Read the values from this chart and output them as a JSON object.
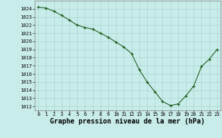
{
  "x": [
    0,
    1,
    2,
    3,
    4,
    5,
    6,
    7,
    8,
    9,
    10,
    11,
    12,
    13,
    14,
    15,
    16,
    17,
    18,
    19,
    20,
    21,
    22,
    23
  ],
  "y": [
    1024.2,
    1024.1,
    1023.7,
    1023.2,
    1022.6,
    1022.0,
    1021.7,
    1021.5,
    1021.0,
    1020.5,
    1019.9,
    1019.3,
    1018.5,
    1016.5,
    1015.0,
    1013.8,
    1012.6,
    1012.1,
    1012.3,
    1013.3,
    1014.5,
    1016.9,
    1017.8,
    1019.0
  ],
  "xlim": [
    -0.5,
    23.5
  ],
  "ylim": [
    1011.5,
    1025.0
  ],
  "yticks": [
    1012,
    1013,
    1014,
    1015,
    1016,
    1017,
    1018,
    1019,
    1020,
    1021,
    1022,
    1023,
    1024
  ],
  "xticks": [
    0,
    1,
    2,
    3,
    4,
    5,
    6,
    7,
    8,
    9,
    10,
    11,
    12,
    13,
    14,
    15,
    16,
    17,
    18,
    19,
    20,
    21,
    22,
    23
  ],
  "xlabel": "Graphe pression niveau de la mer (hPa)",
  "line_color": "#1a5c1a",
  "marker_color": "#1a5c1a",
  "bg_color": "#c8ecea",
  "grid_color": "#a8d4d0",
  "tick_fontsize": 5.0,
  "xlabel_fontsize": 7.0
}
